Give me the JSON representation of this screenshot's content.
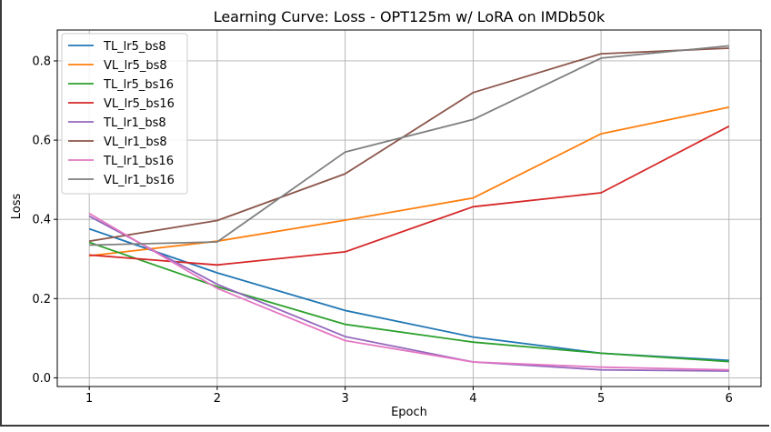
{
  "chart_data": {
    "type": "line",
    "title": "Learning Curve: Loss - OPT125m w/ LoRA on IMDb50k",
    "xlabel": "Epoch",
    "ylabel": "Loss",
    "x": [
      1,
      2,
      3,
      4,
      5,
      6
    ],
    "x_ticks": [
      "1",
      "2",
      "3",
      "4",
      "5",
      "6"
    ],
    "y_ticks": [
      "0.0",
      "0.2",
      "0.4",
      "0.6",
      "0.8"
    ],
    "y_tick_values": [
      0.0,
      0.2,
      0.4,
      0.6,
      0.8
    ],
    "xlim": [
      0.75,
      6.25
    ],
    "ylim": [
      -0.022,
      0.878
    ],
    "grid": true,
    "legend_position": "upper-left",
    "series": [
      {
        "name": "TL_lr5_bs8",
        "color": "#1f77b4",
        "values": [
          0.376,
          0.265,
          0.17,
          0.103,
          0.062,
          0.044
        ]
      },
      {
        "name": "VL_lr5_bs8",
        "color": "#ff7f0e",
        "values": [
          0.308,
          0.345,
          0.398,
          0.454,
          0.616,
          0.683
        ]
      },
      {
        "name": "TL_lr5_bs16",
        "color": "#2ca02c",
        "values": [
          0.342,
          0.23,
          0.135,
          0.09,
          0.062,
          0.041
        ]
      },
      {
        "name": "VL_lr5_bs16",
        "color": "#d62728",
        "values": [
          0.31,
          0.285,
          0.318,
          0.432,
          0.467,
          0.635
        ]
      },
      {
        "name": "TL_lr1_bs8",
        "color": "#9467bd",
        "values": [
          0.408,
          0.236,
          0.104,
          0.04,
          0.02,
          0.017
        ]
      },
      {
        "name": "VL_lr1_bs8",
        "color": "#8c564b",
        "values": [
          0.345,
          0.397,
          0.515,
          0.72,
          0.818,
          0.832
        ]
      },
      {
        "name": "TL_lr1_bs16",
        "color": "#e377c2",
        "values": [
          0.415,
          0.226,
          0.094,
          0.04,
          0.027,
          0.02
        ]
      },
      {
        "name": "VL_lr1_bs16",
        "color": "#7f7f7f",
        "values": [
          0.335,
          0.343,
          0.57,
          0.652,
          0.807,
          0.838
        ]
      }
    ]
  }
}
